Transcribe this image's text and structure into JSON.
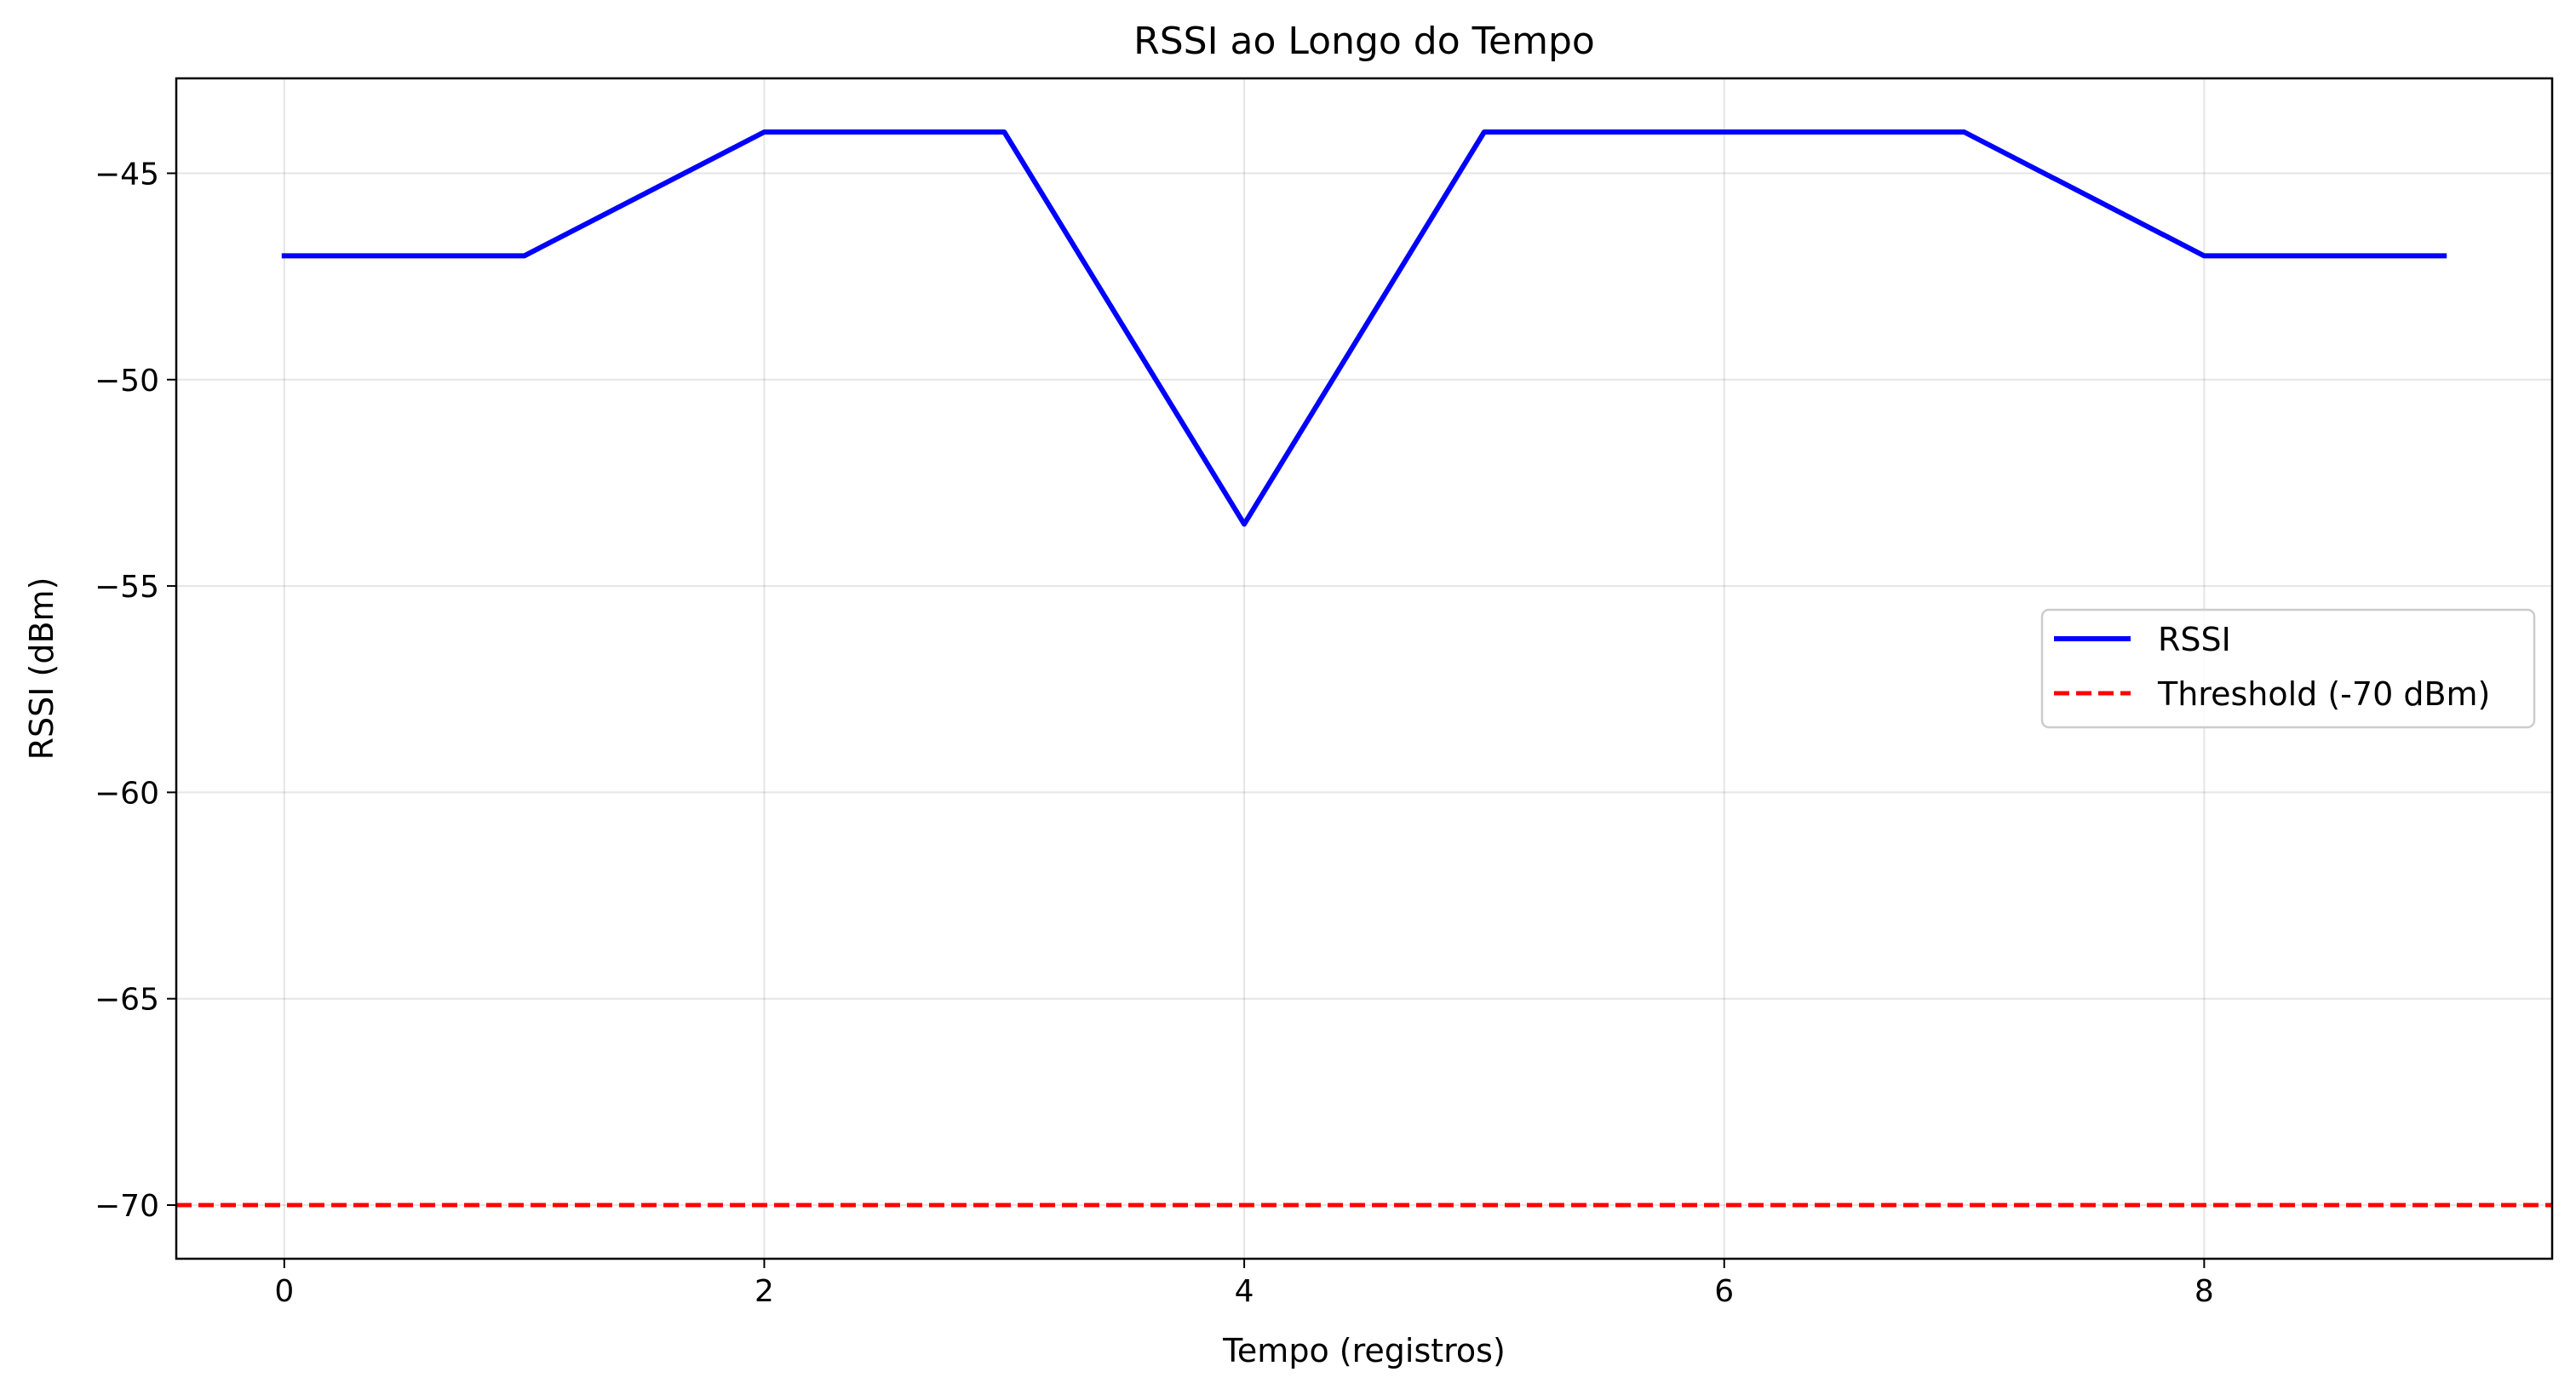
{
  "chart_data": {
    "type": "line",
    "title": "RSSI ao Longo do Tempo",
    "xlabel": "Tempo (registros)",
    "ylabel": "RSSI (dBm)",
    "xlim": [
      -0.45,
      9.45
    ],
    "ylim": [
      -71.3,
      -42.7
    ],
    "xticks": [
      0,
      2,
      4,
      6,
      8
    ],
    "xtick_labels": [
      "0",
      "2",
      "4",
      "6",
      "8"
    ],
    "yticks": [
      -45,
      -50,
      -55,
      -60,
      -65,
      -70
    ],
    "ytick_labels": [
      "−45",
      "−50",
      "−55",
      "−60",
      "−65",
      "−70"
    ],
    "grid": true,
    "legend_position": "center-right",
    "series": [
      {
        "name": "RSSI",
        "color": "#0000ff",
        "style": "solid",
        "x": [
          0,
          1,
          2,
          3,
          4,
          5,
          6,
          7,
          8,
          9
        ],
        "y": [
          -47,
          -47,
          -44,
          -44,
          -53.5,
          -44,
          -44,
          -44,
          -47,
          -47
        ]
      }
    ],
    "reference_lines": [
      {
        "name": "Threshold (-70 dBm)",
        "color": "#ff0000",
        "style": "dashed",
        "orientation": "horizontal",
        "y": -70
      }
    ]
  }
}
